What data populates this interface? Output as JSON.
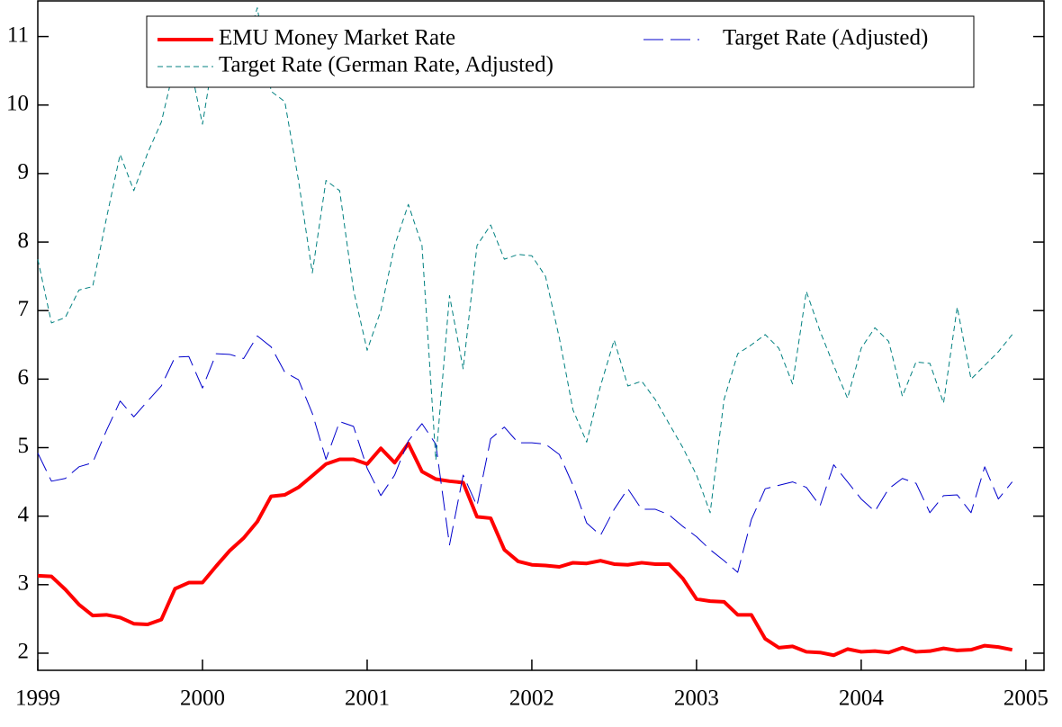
{
  "chart_data": {
    "type": "line",
    "x": [
      1999,
      1999.083,
      1999.167,
      1999.25,
      1999.333,
      1999.417,
      1999.5,
      1999.583,
      1999.667,
      1999.75,
      1999.833,
      1999.917,
      2000,
      2000.083,
      2000.167,
      2000.25,
      2000.333,
      2000.417,
      2000.5,
      2000.583,
      2000.667,
      2000.75,
      2000.833,
      2000.917,
      2001,
      2001.083,
      2001.167,
      2001.25,
      2001.333,
      2001.417,
      2001.5,
      2001.583,
      2001.667,
      2001.75,
      2001.833,
      2001.917,
      2002,
      2002.083,
      2002.167,
      2002.25,
      2002.333,
      2002.417,
      2002.5,
      2002.583,
      2002.667,
      2002.75,
      2002.833,
      2002.917,
      2003,
      2003.083,
      2003.167,
      2003.25,
      2003.333,
      2003.417,
      2003.5,
      2003.583,
      2003.667,
      2003.75,
      2003.833,
      2003.917,
      2004,
      2004.083,
      2004.167,
      2004.25,
      2004.333,
      2004.417,
      2004.5,
      2004.583,
      2004.667,
      2004.75,
      2004.833,
      2004.917
    ],
    "series": [
      {
        "name": "EMU Money Market Rate",
        "color": "#ff0000",
        "linestyle": "solid",
        "linewidth": 4,
        "values": [
          3.13,
          3.12,
          2.93,
          2.71,
          2.55,
          2.56,
          2.52,
          2.43,
          2.42,
          2.49,
          2.94,
          3.03,
          3.03,
          3.27,
          3.5,
          3.68,
          3.92,
          4.29,
          4.31,
          4.42,
          4.59,
          4.76,
          4.83,
          4.83,
          4.76,
          4.99,
          4.78,
          5.06,
          4.65,
          4.54,
          4.51,
          4.49,
          3.99,
          3.97,
          3.51,
          3.34,
          3.29,
          3.28,
          3.26,
          3.32,
          3.31,
          3.35,
          3.3,
          3.29,
          3.32,
          3.3,
          3.3,
          3.09,
          2.79,
          2.76,
          2.75,
          2.56,
          2.56,
          2.21,
          2.08,
          2.1,
          2.02,
          2.01,
          1.97,
          2.06,
          2.02,
          2.03,
          2.01,
          2.08,
          2.02,
          2.03,
          2.07,
          2.04,
          2.05,
          2.11,
          2.09,
          2.05
        ]
      },
      {
        "name": "Target Rate (Adjusted)",
        "color": "#0000cc",
        "linestyle": "long-dashed",
        "linewidth": 1,
        "values": [
          4.92,
          4.51,
          4.55,
          4.72,
          4.78,
          5.25,
          5.68,
          5.45,
          5.68,
          5.9,
          6.32,
          6.33,
          5.87,
          6.37,
          6.36,
          6.3,
          6.63,
          6.47,
          6.1,
          5.99,
          5.5,
          4.83,
          5.38,
          5.31,
          4.7,
          4.3,
          4.6,
          5.1,
          5.35,
          5.05,
          3.58,
          4.6,
          4.15,
          5.13,
          5.3,
          5.07,
          5.07,
          5.05,
          4.9,
          4.45,
          3.9,
          3.72,
          4.1,
          4.4,
          4.1,
          4.1,
          4.02,
          3.85,
          3.7,
          3.51,
          3.35,
          3.18,
          3.95,
          4.4,
          4.45,
          4.5,
          4.42,
          4.15,
          4.75,
          4.5,
          4.25,
          4.07,
          4.4,
          4.55,
          4.48,
          4.05,
          4.3,
          4.31,
          4.05,
          4.72,
          4.25,
          4.5
        ]
      },
      {
        "name": "Target Rate (German Rate, Adjusted)",
        "color": "#008080",
        "linestyle": "dashed",
        "linewidth": 1,
        "values": [
          7.75,
          6.82,
          6.9,
          7.3,
          7.35,
          8.35,
          9.28,
          8.75,
          9.3,
          9.75,
          10.6,
          10.68,
          9.72,
          10.95,
          10.9,
          10.75,
          11.42,
          10.2,
          10.05,
          8.9,
          7.55,
          8.9,
          8.75,
          7.3,
          6.42,
          7.0,
          7.95,
          8.55,
          7.95,
          4.82,
          7.22,
          6.15,
          7.95,
          8.25,
          7.75,
          7.82,
          7.8,
          7.5,
          6.6,
          5.55,
          5.08,
          5.9,
          6.57,
          5.9,
          5.97,
          5.7,
          5.35,
          5.0,
          4.6,
          4.05,
          5.7,
          6.37,
          6.5,
          6.65,
          6.45,
          5.93,
          7.28,
          6.7,
          6.2,
          5.72,
          6.45,
          6.75,
          6.55,
          5.75,
          6.25,
          6.23,
          5.65,
          7.05,
          6.0,
          6.2,
          6.4,
          6.65
        ]
      }
    ],
    "xlim": [
      1999,
      2005.11
    ],
    "xticks": [
      1999,
      2000,
      2001,
      2002,
      2003,
      2004,
      2005
    ],
    "ylim": [
      1.75,
      11.52
    ],
    "yticks": [
      2,
      3,
      4,
      5,
      6,
      7,
      8,
      9,
      10,
      11
    ],
    "grid": false,
    "legend": "upper center"
  }
}
